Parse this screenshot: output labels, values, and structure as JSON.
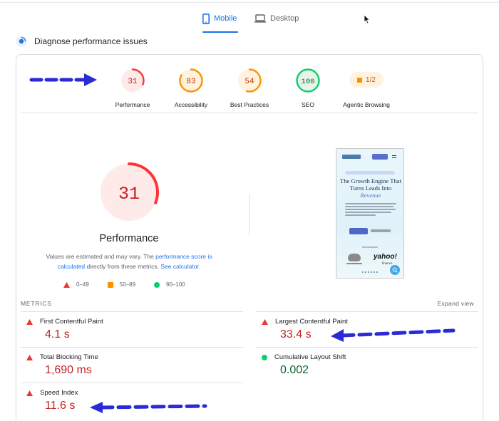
{
  "tabs": [
    {
      "label": "Mobile",
      "active": true,
      "icon": "phone-icon"
    },
    {
      "label": "Desktop",
      "active": false,
      "icon": "laptop-icon"
    }
  ],
  "diagnose": {
    "label": "Diagnose performance issues",
    "icon": "lighthouse-icon"
  },
  "categories": [
    {
      "label": "Performance",
      "score": "31",
      "status": "fail"
    },
    {
      "label": "Accessibility",
      "score": "83",
      "status": "average"
    },
    {
      "label": "Best Practices",
      "score": "54",
      "status": "average"
    },
    {
      "label": "SEO",
      "score": "100",
      "status": "pass"
    },
    {
      "label": "Agentic Browsing",
      "score": "1/2",
      "status": "average"
    }
  ],
  "main_gauge": {
    "score": "31",
    "title": "Performance"
  },
  "note": {
    "part1": "Values are estimated and may vary. The ",
    "link1": "performance score is calculated",
    "part2": " directly from these metrics. ",
    "link2": "See calculator."
  },
  "legend": [
    {
      "range": "0–49",
      "shape": "triangle",
      "color": "#e53935"
    },
    {
      "range": "50–89",
      "shape": "square",
      "color": "#fa9200"
    },
    {
      "range": "90–100",
      "shape": "circle",
      "color": "#0cce6b"
    }
  ],
  "thumbnail": {
    "headline_1": "The Growth Engine That",
    "headline_2": "Turns Leads Into",
    "headline_accent": "Revenue",
    "partner": "yahoo!",
    "partner_sub": "finance"
  },
  "metrics_section": {
    "title": "METRICS",
    "expand_label": "Expand view"
  },
  "metrics": [
    {
      "name": "First Contentful Paint",
      "value": "4.1 s",
      "status": "fail"
    },
    {
      "name": "Largest Contentful Paint",
      "value": "33.4 s",
      "status": "fail"
    },
    {
      "name": "Total Blocking Time",
      "value": "1,690 ms",
      "status": "fail"
    },
    {
      "name": "Cumulative Layout Shift",
      "value": "0.002",
      "status": "pass"
    },
    {
      "name": "Speed Index",
      "value": "11.6 s",
      "status": "fail"
    }
  ],
  "colors": {
    "accent": "#1a73e8",
    "fail": "#c5221f",
    "fail_ring": "#ff3333",
    "average": "#fa9200",
    "pass": "#0cce6b",
    "annotation_arrow": "#2a2ad6"
  }
}
